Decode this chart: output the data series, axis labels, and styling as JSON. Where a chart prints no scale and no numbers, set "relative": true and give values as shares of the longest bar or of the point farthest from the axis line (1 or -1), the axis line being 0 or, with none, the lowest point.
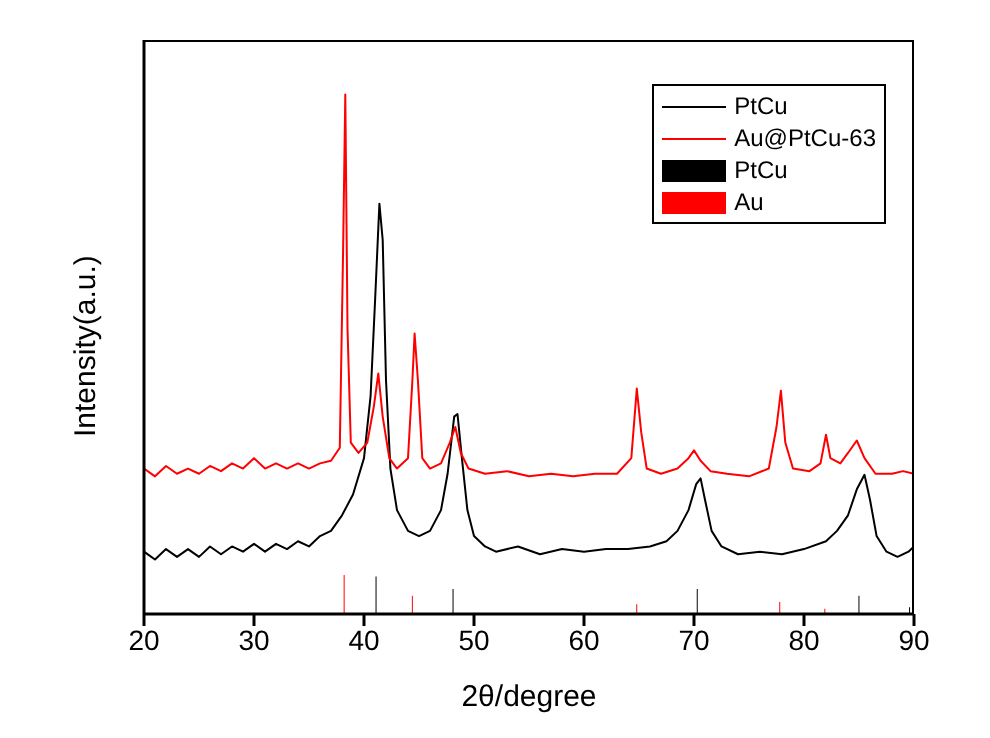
{
  "chart_data": {
    "type": "line",
    "xlabel": "2θ/degree",
    "ylabel": "Intensity(a.u.)",
    "relative": true,
    "xlim": [
      20,
      90
    ],
    "xticks": [
      20,
      30,
      40,
      50,
      60,
      70,
      80,
      90
    ],
    "legend": "top right",
    "marker": "none",
    "line_style": "solid",
    "grid": false,
    "series": [
      {
        "name": "PtCu",
        "color": "#000000",
        "x": [
          20,
          21,
          22,
          23,
          24,
          25,
          26,
          27,
          28,
          29,
          30,
          31,
          32,
          33,
          34,
          35,
          36,
          37,
          38,
          39,
          40,
          40.6,
          41,
          41.4,
          41.7,
          42,
          42.4,
          43,
          44,
          45,
          46,
          47,
          47.6,
          48.2,
          48.5,
          48.9,
          49.4,
          50,
          51,
          52,
          54,
          56,
          58,
          60,
          62,
          64,
          66,
          67.5,
          68.5,
          69.5,
          70.2,
          70.6,
          71,
          71.6,
          72.5,
          74,
          76,
          78,
          80,
          82,
          83,
          84,
          84.8,
          85.5,
          86,
          86.6,
          87.5,
          88.5,
          89.5,
          90
        ],
        "values": [
          0.12,
          0.105,
          0.125,
          0.11,
          0.125,
          0.11,
          0.13,
          0.115,
          0.13,
          0.12,
          0.135,
          0.12,
          0.135,
          0.125,
          0.14,
          0.13,
          0.15,
          0.16,
          0.19,
          0.23,
          0.3,
          0.42,
          0.6,
          0.79,
          0.72,
          0.45,
          0.28,
          0.2,
          0.16,
          0.15,
          0.16,
          0.2,
          0.27,
          0.38,
          0.385,
          0.3,
          0.2,
          0.15,
          0.13,
          0.12,
          0.13,
          0.115,
          0.125,
          0.12,
          0.125,
          0.125,
          0.13,
          0.14,
          0.16,
          0.2,
          0.25,
          0.261,
          0.22,
          0.16,
          0.13,
          0.115,
          0.12,
          0.115,
          0.125,
          0.14,
          0.16,
          0.19,
          0.24,
          0.268,
          0.22,
          0.15,
          0.12,
          0.11,
          0.12,
          0.13
        ]
      },
      {
        "name": "Au@PtCu-63",
        "color": "#ff0000",
        "x": [
          20,
          21,
          22,
          23,
          24,
          25,
          26,
          27,
          28,
          29,
          30,
          31,
          32,
          33,
          34,
          35,
          36,
          37,
          37.8,
          38.1,
          38.3,
          38.5,
          38.8,
          39.5,
          40.3,
          40.9,
          41.3,
          41.7,
          42.3,
          43,
          44,
          44.4,
          44.6,
          44.9,
          45.3,
          46,
          47,
          47.8,
          48.3,
          48.8,
          49.5,
          51,
          53,
          55,
          57,
          59,
          61,
          63,
          64.3,
          64.8,
          65.2,
          65.7,
          67,
          68.5,
          69.5,
          70,
          70.6,
          71.5,
          73,
          75,
          76.8,
          77.5,
          77.9,
          78.3,
          79,
          80.5,
          81.5,
          82,
          82.4,
          83.3,
          84,
          84.8,
          85.5,
          86.5,
          88,
          89,
          90
        ],
        "values": [
          0.28,
          0.265,
          0.285,
          0.27,
          0.28,
          0.27,
          0.285,
          0.275,
          0.29,
          0.28,
          0.3,
          0.28,
          0.29,
          0.28,
          0.29,
          0.28,
          0.29,
          0.295,
          0.32,
          0.7,
          1,
          0.55,
          0.33,
          0.31,
          0.33,
          0.4,
          0.463,
          0.38,
          0.3,
          0.28,
          0.3,
          0.45,
          0.54,
          0.45,
          0.3,
          0.28,
          0.29,
          0.33,
          0.36,
          0.31,
          0.28,
          0.27,
          0.275,
          0.265,
          0.27,
          0.265,
          0.27,
          0.27,
          0.3,
          0.434,
          0.35,
          0.28,
          0.27,
          0.28,
          0.3,
          0.315,
          0.295,
          0.275,
          0.27,
          0.265,
          0.28,
          0.36,
          0.43,
          0.33,
          0.28,
          0.275,
          0.29,
          0.345,
          0.3,
          0.29,
          0.31,
          0.334,
          0.3,
          0.27,
          0.27,
          0.275,
          0.27
        ]
      },
      {
        "name": "PtCu",
        "color": "#000000",
        "type": "bar",
        "x": [
          41.1,
          48.1,
          70.3,
          85,
          89.6
        ],
        "values": [
          0.072,
          0.048,
          0.048,
          0.035,
          0.013
        ]
      },
      {
        "name": "Au",
        "color": "#ff0000",
        "type": "bar",
        "x": [
          38.2,
          44.4,
          64.8,
          77.8,
          81.9
        ],
        "values": [
          0.075,
          0.035,
          0.019,
          0.023,
          0.01
        ]
      }
    ]
  }
}
